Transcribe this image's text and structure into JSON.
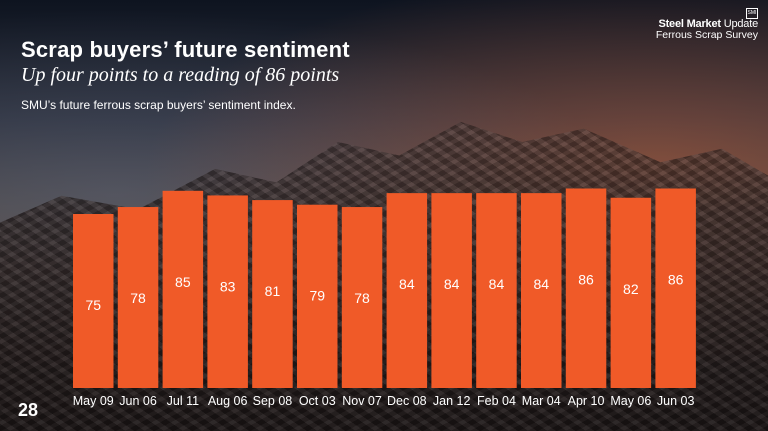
{
  "header": {
    "title": "Scrap buyers’ future sentiment",
    "subtitle": "Up four points to a reading of 86 points",
    "description": "SMU’s future ferrous scrap buyers’ sentiment index."
  },
  "brand": {
    "badge": "SMI",
    "name_bold": "Steel Market",
    "name_regular": "Update",
    "survey": "Ferrous Scrap Survey"
  },
  "page_number": "28",
  "colors": {
    "bar": "#f05a28"
  },
  "chart_data": {
    "type": "bar",
    "title": "",
    "xlabel": "",
    "ylabel": "",
    "categories": [
      "May 09",
      "Jun 06",
      "Jul 11",
      "Aug 06",
      "Sep 08",
      "Oct 03",
      "Nov 07",
      "Dec 08",
      "Jan 12",
      "Feb 04",
      "Mar 04",
      "Apr 10",
      "May 06",
      "Jun 03"
    ],
    "values": [
      75,
      78,
      85,
      83,
      81,
      79,
      78,
      84,
      84,
      84,
      84,
      86,
      82,
      86
    ],
    "data_labels": true,
    "ylim": [
      0,
      100
    ],
    "grid": false,
    "legend": "none"
  }
}
